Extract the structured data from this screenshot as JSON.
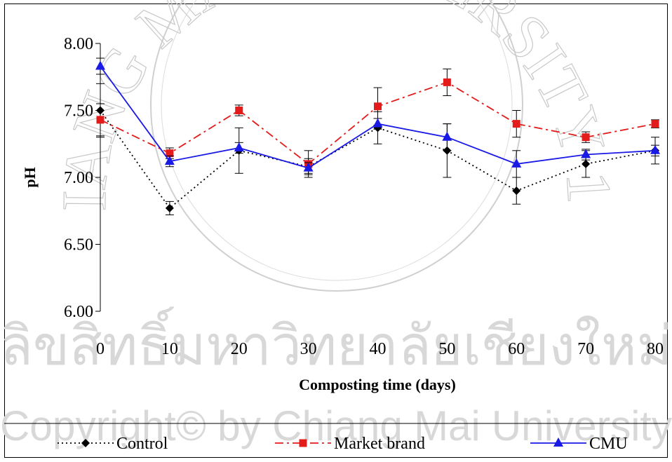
{
  "watermark": {
    "seal_top_text": "CHIANG MAI UNIVERSITY 1964",
    "thai_text": "ลิขสิทธิ์มหาวิทยาลัยเชียงใหม่",
    "copyright_text": "Copyright© by Chiang Mai University"
  },
  "colors": {
    "control": "#000000",
    "market_brand": "#e41b1b",
    "cmu": "#1a1ae6"
  },
  "chart_data": {
    "type": "line",
    "xlabel": "Composting time (days)",
    "ylabel": "pH",
    "x": [
      0,
      10,
      20,
      30,
      40,
      50,
      60,
      70,
      80
    ],
    "x_tick_labels": [
      "0",
      "10",
      "20",
      "30",
      "40",
      "50",
      "60",
      "70",
      "80"
    ],
    "ylim": [
      6.0,
      8.0
    ],
    "y_ticks": [
      6.0,
      6.5,
      7.0,
      7.5,
      8.0
    ],
    "y_tick_labels": [
      "6.00",
      "6.50",
      "7.00",
      "7.50",
      "8.00"
    ],
    "grid": false,
    "legend_position": "bottom",
    "series": [
      {
        "name": "Control",
        "marker": "diamond",
        "line_style": "dotted",
        "values": [
          7.5,
          6.77,
          7.2,
          7.08,
          7.37,
          7.2,
          6.9,
          7.1,
          7.2
        ],
        "errors": [
          0.2,
          0.05,
          0.17,
          0.06,
          0.12,
          0.2,
          0.1,
          0.1,
          0.1
        ]
      },
      {
        "name": "Market brand",
        "marker": "square",
        "line_style": "dashdot",
        "values": [
          7.43,
          7.18,
          7.5,
          7.1,
          7.53,
          7.71,
          7.4,
          7.3,
          7.4
        ],
        "errors": [
          0.12,
          0.04,
          0.04,
          0.1,
          0.14,
          0.1,
          0.1,
          0.04,
          0.03
        ]
      },
      {
        "name": "CMU",
        "marker": "triangle",
        "line_style": "solid",
        "values": [
          7.83,
          7.12,
          7.22,
          7.07,
          7.4,
          7.3,
          7.1,
          7.17,
          7.2
        ],
        "errors": [
          0.06,
          0.04,
          0.04,
          0.04,
          0.04,
          0.1,
          0.1,
          0.04,
          0.04
        ]
      }
    ]
  }
}
